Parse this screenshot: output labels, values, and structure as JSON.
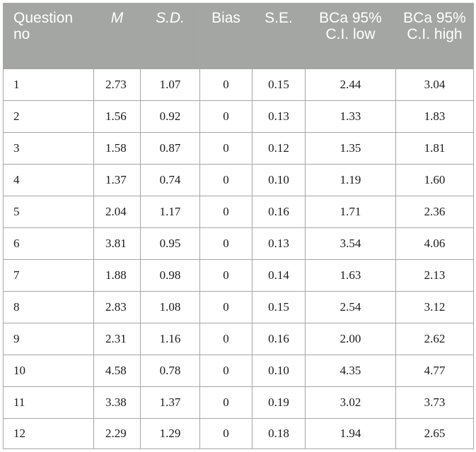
{
  "table": {
    "headers": [
      {
        "key": "q",
        "text": "Question no",
        "italic": false
      },
      {
        "key": "m",
        "text": "M",
        "italic": true
      },
      {
        "key": "sd",
        "text": "S.D.",
        "italic": true
      },
      {
        "key": "bias",
        "text": "Bias",
        "italic": false
      },
      {
        "key": "se",
        "text": "S.E.",
        "italic": false
      },
      {
        "key": "low",
        "text": "BCa 95% C.I. low",
        "italic": false
      },
      {
        "key": "high",
        "text": "BCa 95% C.I. high",
        "italic": false
      }
    ],
    "rows": [
      [
        "1",
        "2.73",
        "1.07",
        "0",
        "0.15",
        "2.44",
        "3.04"
      ],
      [
        "2",
        "1.56",
        "0.92",
        "0",
        "0.13",
        "1.33",
        "1.83"
      ],
      [
        "3",
        "1.58",
        "0.87",
        "0",
        "0.12",
        "1.35",
        "1.81"
      ],
      [
        "4",
        "1.37",
        "0.74",
        "0",
        "0.10",
        "1.19",
        "1.60"
      ],
      [
        "5",
        "2.04",
        "1.17",
        "0",
        "0.16",
        "1.71",
        "2.36"
      ],
      [
        "6",
        "3.81",
        "0.95",
        "0",
        "0.13",
        "3.54",
        "4.06"
      ],
      [
        "7",
        "1.88",
        "0.98",
        "0",
        "0.14",
        "1.63",
        "2.13"
      ],
      [
        "8",
        "2.83",
        "1.08",
        "0",
        "0.15",
        "2.54",
        "3.12"
      ],
      [
        "9",
        "2.31",
        "1.16",
        "0",
        "0.16",
        "2.00",
        "2.62"
      ],
      [
        "10",
        "4.58",
        "0.78",
        "0",
        "0.10",
        "4.35",
        "4.77"
      ],
      [
        "11",
        "3.38",
        "1.37",
        "0",
        "0.19",
        "3.02",
        "3.73"
      ],
      [
        "12",
        "2.29",
        "1.29",
        "0",
        "0.18",
        "1.94",
        "2.65"
      ]
    ],
    "colors": {
      "header_bg": "#a3a6a3",
      "header_text": "#ffffff",
      "border": "#a6a6a6"
    }
  }
}
